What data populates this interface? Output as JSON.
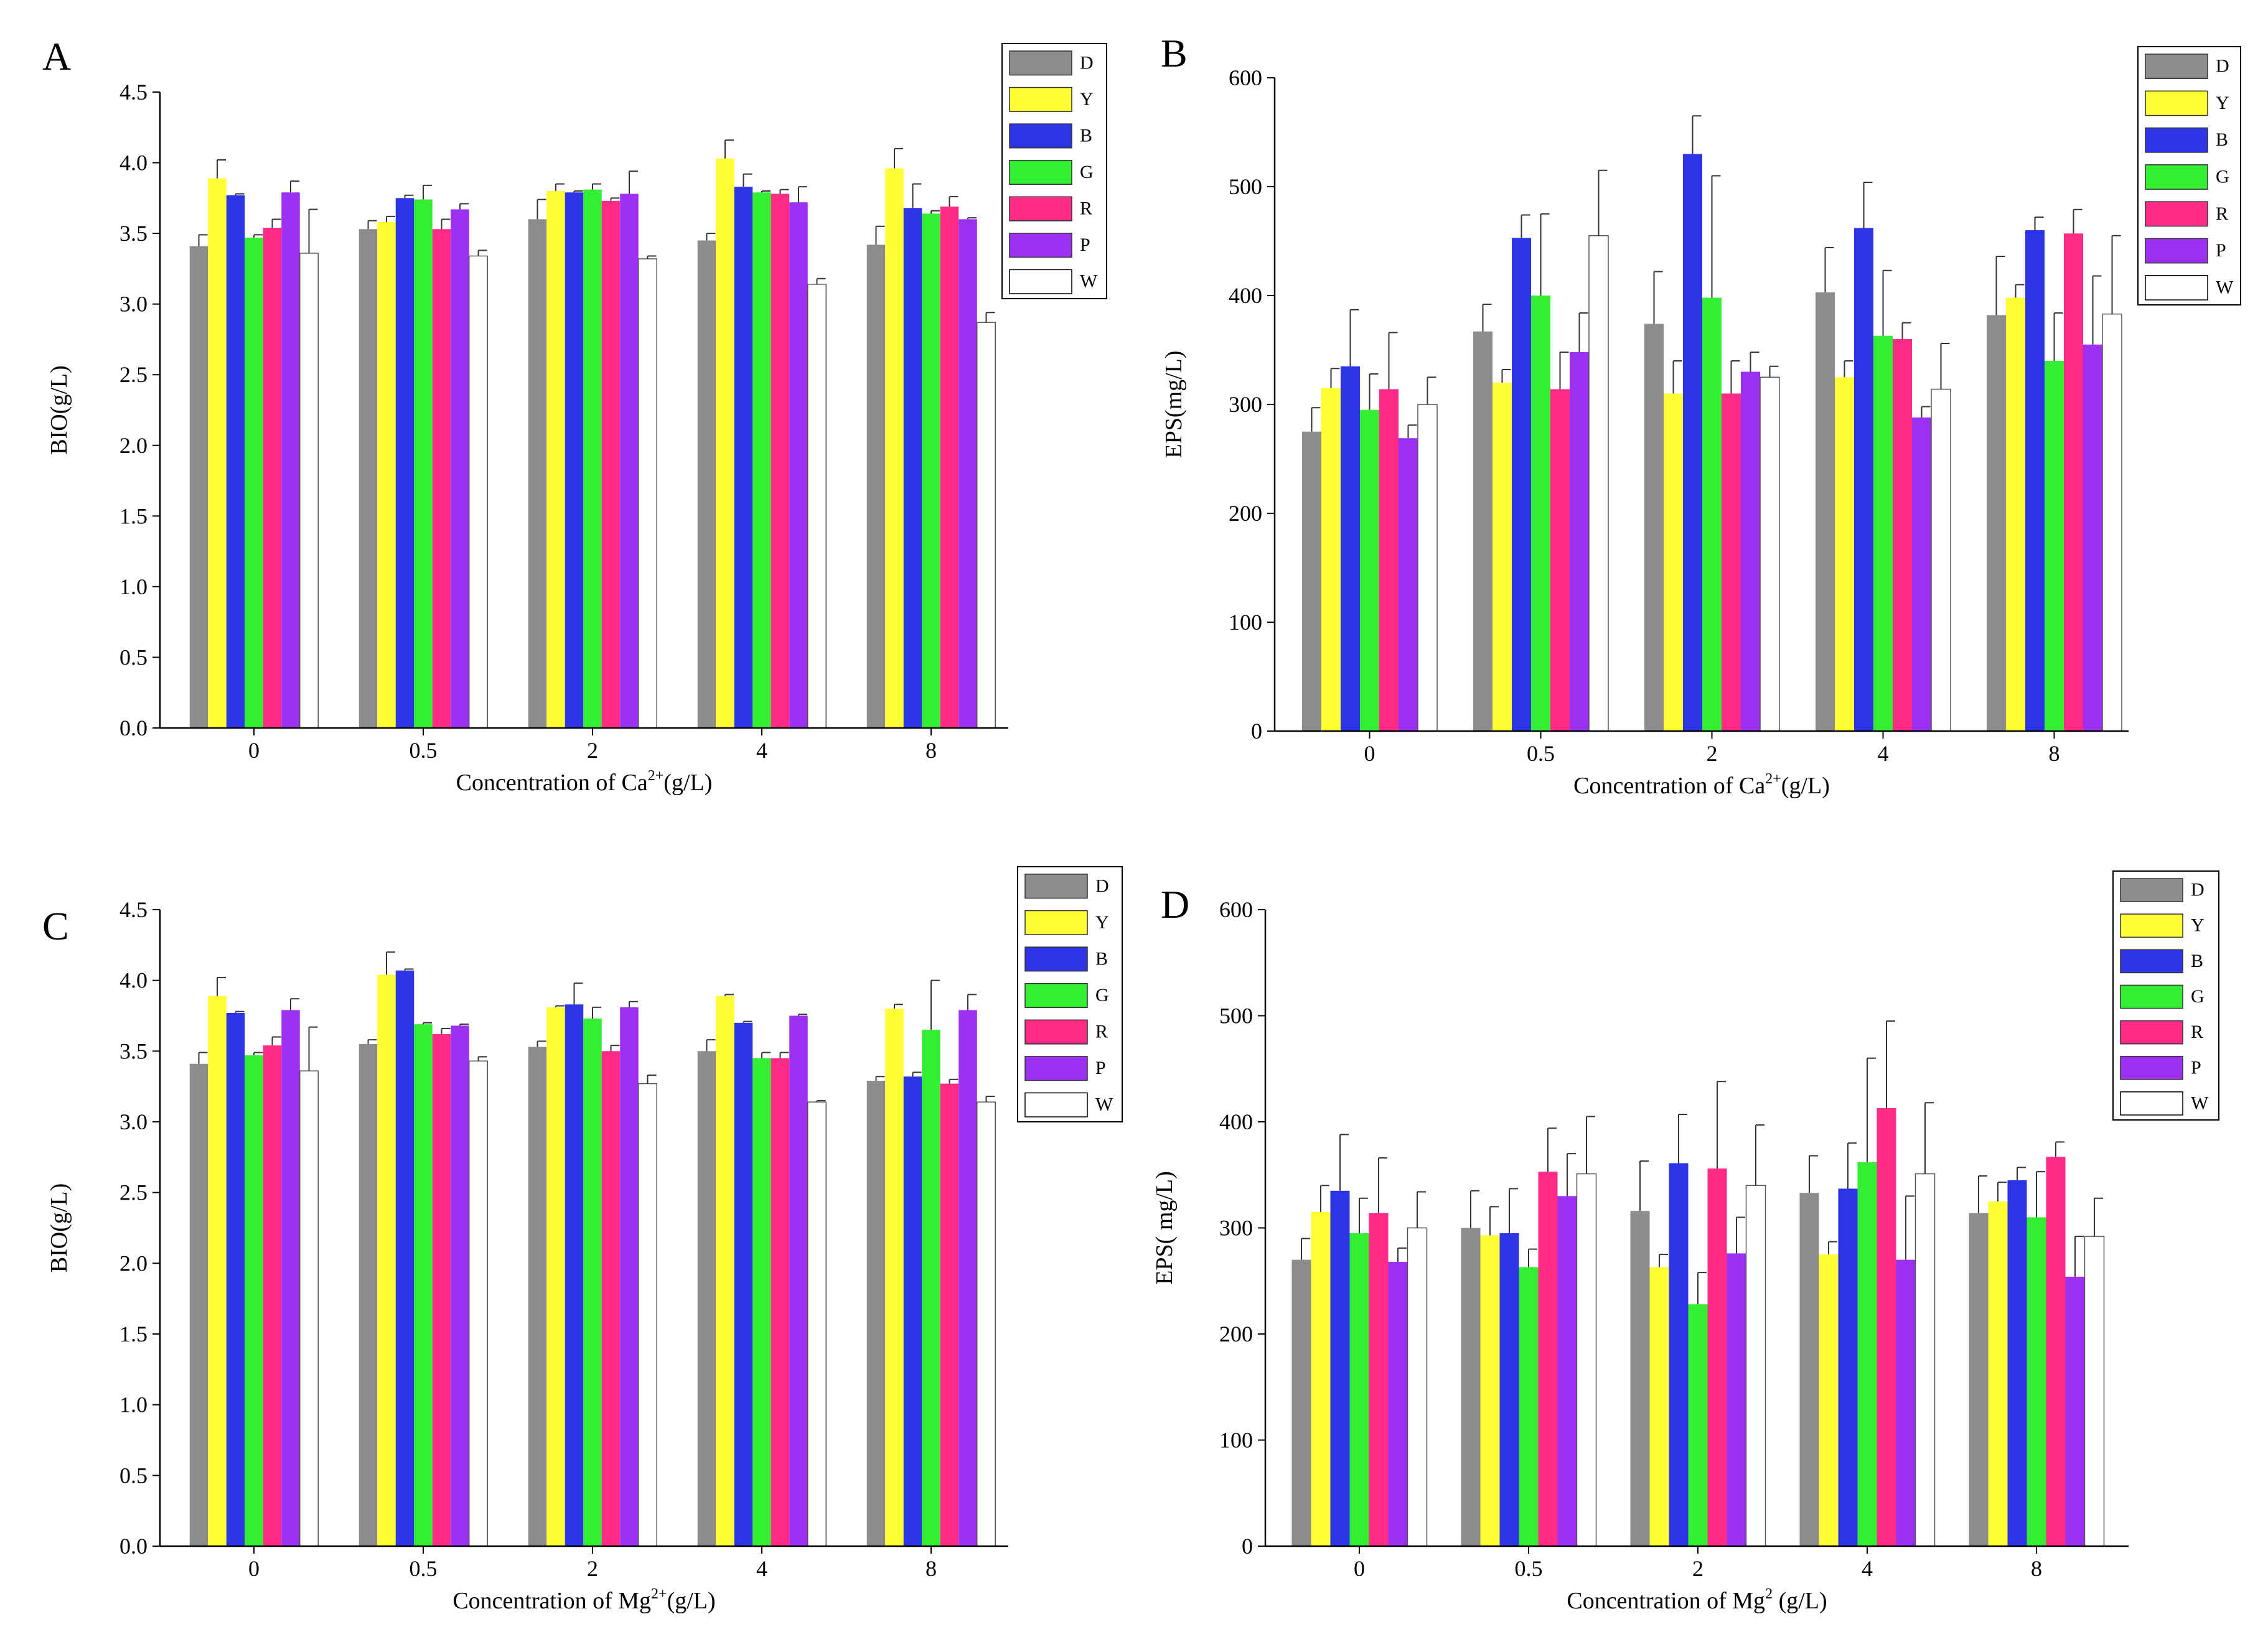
{
  "colors": {
    "D": "#8c8c8c",
    "Y": "#ffff33",
    "B": "#2b35e6",
    "G": "#33ee33",
    "R": "#ff2b86",
    "P": "#9b30f2",
    "W": "#ffffff"
  },
  "chart_data": [
    {
      "panel": "A",
      "type": "bar",
      "categories": [
        "0",
        "0.5",
        "2",
        "4",
        "8"
      ],
      "xlabel_parts": [
        "Concentration of Ca",
        "2+",
        "(g/L)"
      ],
      "ylabel": "BIO(g/L)",
      "ylim": [
        0,
        4.5
      ],
      "yticks": [
        "0.0",
        "0.5",
        "1.0",
        "1.5",
        "2.0",
        "2.5",
        "3.0",
        "3.5",
        "4.0",
        "4.5"
      ],
      "legend": [
        "D",
        "Y",
        "B",
        "G",
        "R",
        "P",
        "W"
      ],
      "series": [
        {
          "name": "D",
          "values": [
            3.41,
            3.53,
            3.6,
            3.45,
            3.42
          ],
          "errors": [
            0.08,
            0.06,
            0.14,
            0.05,
            0.13
          ]
        },
        {
          "name": "Y",
          "values": [
            3.89,
            3.58,
            3.8,
            4.03,
            3.96
          ],
          "errors": [
            0.13,
            0.04,
            0.05,
            0.13,
            0.14
          ]
        },
        {
          "name": "B",
          "values": [
            3.77,
            3.75,
            3.79,
            3.83,
            3.68
          ],
          "errors": [
            0.01,
            0.02,
            0.01,
            0.09,
            0.17
          ]
        },
        {
          "name": "G",
          "values": [
            3.47,
            3.74,
            3.81,
            3.79,
            3.64
          ],
          "errors": [
            0.02,
            0.1,
            0.04,
            0.01,
            0.02
          ]
        },
        {
          "name": "R",
          "values": [
            3.54,
            3.53,
            3.73,
            3.78,
            3.69
          ],
          "errors": [
            0.06,
            0.07,
            0.02,
            0.03,
            0.07
          ]
        },
        {
          "name": "P",
          "values": [
            3.79,
            3.67,
            3.78,
            3.72,
            3.6
          ],
          "errors": [
            0.08,
            0.04,
            0.16,
            0.11,
            0.01
          ]
        },
        {
          "name": "W",
          "values": [
            3.36,
            3.34,
            3.32,
            3.14,
            2.87
          ],
          "errors": [
            0.31,
            0.04,
            0.02,
            0.04,
            0.07
          ]
        }
      ]
    },
    {
      "panel": "B",
      "type": "bar",
      "categories": [
        "0",
        "0.5",
        "2",
        "4",
        "8"
      ],
      "xlabel_parts": [
        "Concentration of Ca",
        "2+",
        "(g/L)"
      ],
      "ylabel": "EPS(mg/L)",
      "ylim": [
        0,
        600
      ],
      "yticks": [
        "0",
        "100",
        "200",
        "300",
        "400",
        "500",
        "600"
      ],
      "legend": [
        "D",
        "Y",
        "B",
        "G",
        "R",
        "P",
        "W"
      ],
      "series": [
        {
          "name": "D",
          "values": [
            275,
            367,
            374,
            403,
            382
          ],
          "errors": [
            22,
            25,
            48,
            41,
            54
          ]
        },
        {
          "name": "Y",
          "values": [
            315,
            320,
            310,
            325,
            398
          ],
          "errors": [
            18,
            12,
            30,
            15,
            12
          ]
        },
        {
          "name": "B",
          "values": [
            335,
            453,
            530,
            462,
            460
          ],
          "errors": [
            52,
            21,
            35,
            42,
            12
          ]
        },
        {
          "name": "G",
          "values": [
            295,
            400,
            398,
            363,
            340
          ],
          "errors": [
            33,
            75,
            112,
            60,
            44
          ]
        },
        {
          "name": "R",
          "values": [
            314,
            314,
            310,
            360,
            457
          ],
          "errors": [
            52,
            34,
            30,
            15,
            22
          ]
        },
        {
          "name": "P",
          "values": [
            269,
            348,
            330,
            288,
            355
          ],
          "errors": [
            12,
            36,
            18,
            10,
            63
          ]
        },
        {
          "name": "W",
          "values": [
            300,
            455,
            325,
            314,
            383
          ],
          "errors": [
            25,
            60,
            10,
            42,
            72
          ]
        }
      ]
    },
    {
      "panel": "C",
      "type": "bar",
      "categories": [
        "0",
        "0.5",
        "2",
        "4",
        "8"
      ],
      "xlabel_parts": [
        "Concentration of Mg",
        "2+",
        "(g/L)"
      ],
      "ylabel": "BIO(g/L)",
      "ylim": [
        0,
        4.5
      ],
      "yticks": [
        "0.0",
        "0.5",
        "1.0",
        "1.5",
        "2.0",
        "2.5",
        "3.0",
        "3.5",
        "4.0",
        "4.5"
      ],
      "legend": [
        "D",
        "Y",
        "B",
        "G",
        "R",
        "P",
        "W"
      ],
      "series": [
        {
          "name": "D",
          "values": [
            3.41,
            3.55,
            3.53,
            3.5,
            3.29
          ],
          "errors": [
            0.08,
            0.03,
            0.04,
            0.08,
            0.03
          ]
        },
        {
          "name": "Y",
          "values": [
            3.89,
            4.04,
            3.81,
            3.89,
            3.8
          ],
          "errors": [
            0.13,
            0.16,
            0.01,
            0.01,
            0.03
          ]
        },
        {
          "name": "B",
          "values": [
            3.77,
            4.07,
            3.83,
            3.7,
            3.32
          ],
          "errors": [
            0.01,
            0.01,
            0.15,
            0.01,
            0.03
          ]
        },
        {
          "name": "G",
          "values": [
            3.47,
            3.69,
            3.73,
            3.45,
            3.65
          ],
          "errors": [
            0.02,
            0.01,
            0.08,
            0.04,
            0.35
          ]
        },
        {
          "name": "R",
          "values": [
            3.54,
            3.62,
            3.5,
            3.45,
            3.27
          ],
          "errors": [
            0.06,
            0.04,
            0.04,
            0.04,
            0.03
          ]
        },
        {
          "name": "P",
          "values": [
            3.79,
            3.68,
            3.81,
            3.75,
            3.79
          ],
          "errors": [
            0.08,
            0.01,
            0.04,
            0.01,
            0.11
          ]
        },
        {
          "name": "W",
          "values": [
            3.36,
            3.43,
            3.27,
            3.14,
            3.14
          ],
          "errors": [
            0.31,
            0.03,
            0.06,
            0.01,
            0.04
          ]
        }
      ]
    },
    {
      "panel": "D",
      "type": "bar",
      "categories": [
        "0",
        "0.5",
        "2",
        "4",
        "8"
      ],
      "xlabel_parts": [
        "Concentration of Mg",
        "2",
        " (g/L)"
      ],
      "ylabel": "EPS( mg/L)",
      "ylim": [
        0,
        600
      ],
      "yticks": [
        "0",
        "100",
        "200",
        "300",
        "400",
        "500",
        "600"
      ],
      "legend": [
        "D",
        "Y",
        "B",
        "G",
        "R",
        "P",
        "W"
      ],
      "series": [
        {
          "name": "D",
          "values": [
            270,
            300,
            316,
            333,
            314
          ],
          "errors": [
            20,
            35,
            47,
            35,
            35
          ]
        },
        {
          "name": "Y",
          "values": [
            315,
            293,
            263,
            275,
            325
          ],
          "errors": [
            25,
            27,
            12,
            12,
            18
          ]
        },
        {
          "name": "B",
          "values": [
            335,
            295,
            361,
            337,
            345
          ],
          "errors": [
            53,
            42,
            46,
            43,
            12
          ]
        },
        {
          "name": "G",
          "values": [
            295,
            263,
            228,
            362,
            310
          ],
          "errors": [
            33,
            17,
            30,
            98,
            43
          ]
        },
        {
          "name": "R",
          "values": [
            314,
            353,
            356,
            413,
            367
          ],
          "errors": [
            52,
            41,
            82,
            82,
            14
          ]
        },
        {
          "name": "P",
          "values": [
            268,
            330,
            276,
            270,
            254
          ],
          "errors": [
            13,
            40,
            34,
            60,
            38
          ]
        },
        {
          "name": "W",
          "values": [
            300,
            351,
            340,
            351,
            292
          ],
          "errors": [
            34,
            54,
            57,
            67,
            36
          ]
        }
      ]
    }
  ]
}
